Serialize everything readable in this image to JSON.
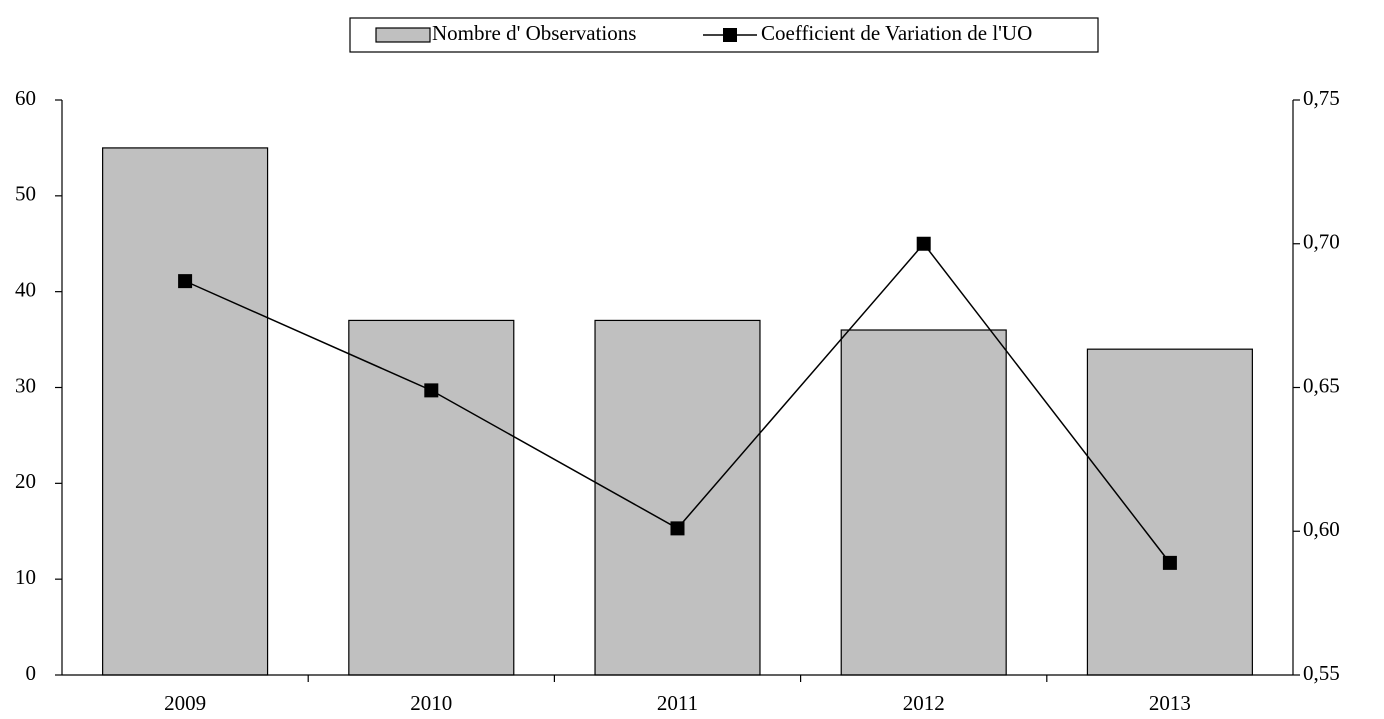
{
  "chart_data": {
    "type": "bar_line",
    "categories": [
      "2009",
      "2010",
      "2011",
      "2012",
      "2013"
    ],
    "series": [
      {
        "name": "Nombre d' Observations",
        "type": "bar",
        "color": "#c0c0c0",
        "values": [
          55,
          37,
          37,
          36,
          34
        ]
      },
      {
        "name": "Coefficient de Variation de l'UO",
        "type": "line",
        "axis": "y2",
        "color": "#000000",
        "values": [
          0.687,
          0.649,
          0.601,
          0.7,
          0.589
        ]
      }
    ],
    "ylim": [
      0,
      60
    ],
    "yticks": [
      0,
      10,
      20,
      30,
      40,
      50,
      60
    ],
    "y2lim": [
      0.55,
      0.75
    ],
    "y2ticks": [
      {
        "value": 0.55,
        "label": "0,55"
      },
      {
        "value": 0.6,
        "label": "0,60"
      },
      {
        "value": 0.65,
        "label": "0,65"
      },
      {
        "value": 0.7,
        "label": "0,70"
      },
      {
        "value": 0.75,
        "label": "0,75"
      }
    ],
    "legend": "top",
    "grid": false
  }
}
